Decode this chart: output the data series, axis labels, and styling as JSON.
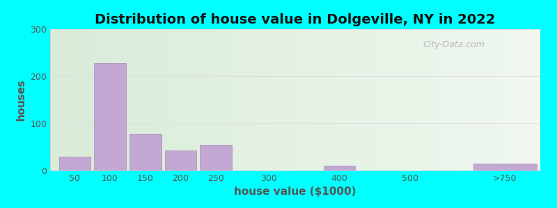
{
  "title": "Distribution of house value in Dolgeville, NY in 2022",
  "xlabel": "house value ($1000)",
  "ylabel": "houses",
  "bar_labels": [
    "50",
    "100",
    "150",
    "200",
    "250",
    "300",
    "400",
    "500",
    ">750"
  ],
  "bar_values": [
    30,
    228,
    78,
    42,
    55,
    0,
    10,
    0,
    15
  ],
  "bar_color": "#C4A8D4",
  "bar_edge_color": "#B090C0",
  "ylim": [
    0,
    300
  ],
  "yticks": [
    0,
    100,
    200,
    300
  ],
  "bg_color_left": "#d8ecd8",
  "bg_color_right": "#f0f8f0",
  "outer_bg": "#00FFFF",
  "title_fontsize": 14,
  "axis_label_fontsize": 11,
  "tick_fontsize": 9,
  "watermark_text": "City-Data.com"
}
